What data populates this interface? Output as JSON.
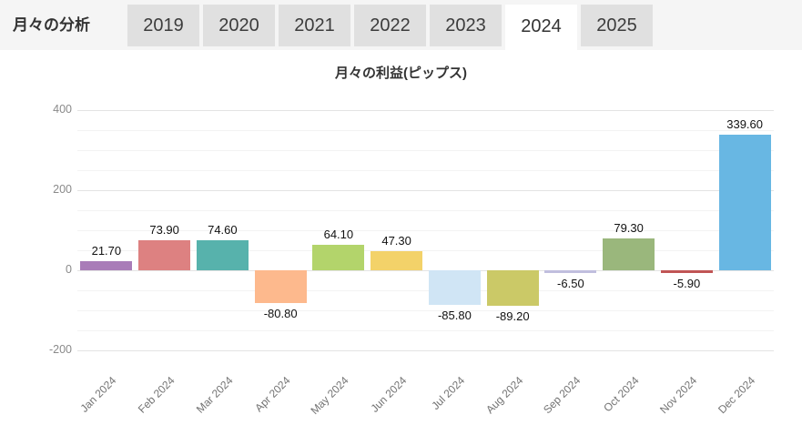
{
  "header": {
    "title": "月々の分析",
    "tabs": [
      {
        "label": "2019",
        "active": false
      },
      {
        "label": "2020",
        "active": false
      },
      {
        "label": "2021",
        "active": false
      },
      {
        "label": "2022",
        "active": false
      },
      {
        "label": "2023",
        "active": false
      },
      {
        "label": "2024",
        "active": true
      },
      {
        "label": "2025",
        "active": false
      }
    ]
  },
  "chart_data": {
    "type": "bar",
    "title": "月々の利益(ピップス)",
    "categories": [
      "Jan 2024",
      "Feb 2024",
      "Mar 2024",
      "Apr 2024",
      "May 2024",
      "Jun 2024",
      "Jul 2024",
      "Aug 2024",
      "Sep 2024",
      "Oct 2024",
      "Nov 2024",
      "Dec 2024"
    ],
    "values": [
      21.7,
      73.9,
      74.6,
      -80.8,
      64.1,
      47.3,
      -85.8,
      -89.2,
      -6.5,
      79.3,
      -5.9,
      339.6
    ],
    "value_labels": [
      "21.70",
      "73.90",
      "74.60",
      "-80.80",
      "64.10",
      "47.30",
      "-85.80",
      "-89.20",
      "-6.50",
      "79.30",
      "-5.90",
      "339.60"
    ],
    "bar_colors": [
      "#a97cb8",
      "#dd8181",
      "#57b2ac",
      "#fdb98d",
      "#b3d46b",
      "#f3d269",
      "#d0e5f5",
      "#cbc967",
      "#c0bede",
      "#9ab77c",
      "#c05555",
      "#68b7e3"
    ],
    "xlabel": "",
    "ylabel": "",
    "ylim": [
      -200,
      400
    ],
    "yticks": [
      -200,
      0,
      200,
      400
    ],
    "minor_tick_interval": 50,
    "grid": true,
    "legend": "none"
  },
  "colors": {
    "header_bg": "#f5f5f5",
    "tab_bg": "#e0e0e0",
    "tab_active_bg": "#ffffff",
    "grid_major": "#e3e3e3",
    "grid_minor": "#f3f3f3",
    "axis_text": "#8a8a8a"
  }
}
